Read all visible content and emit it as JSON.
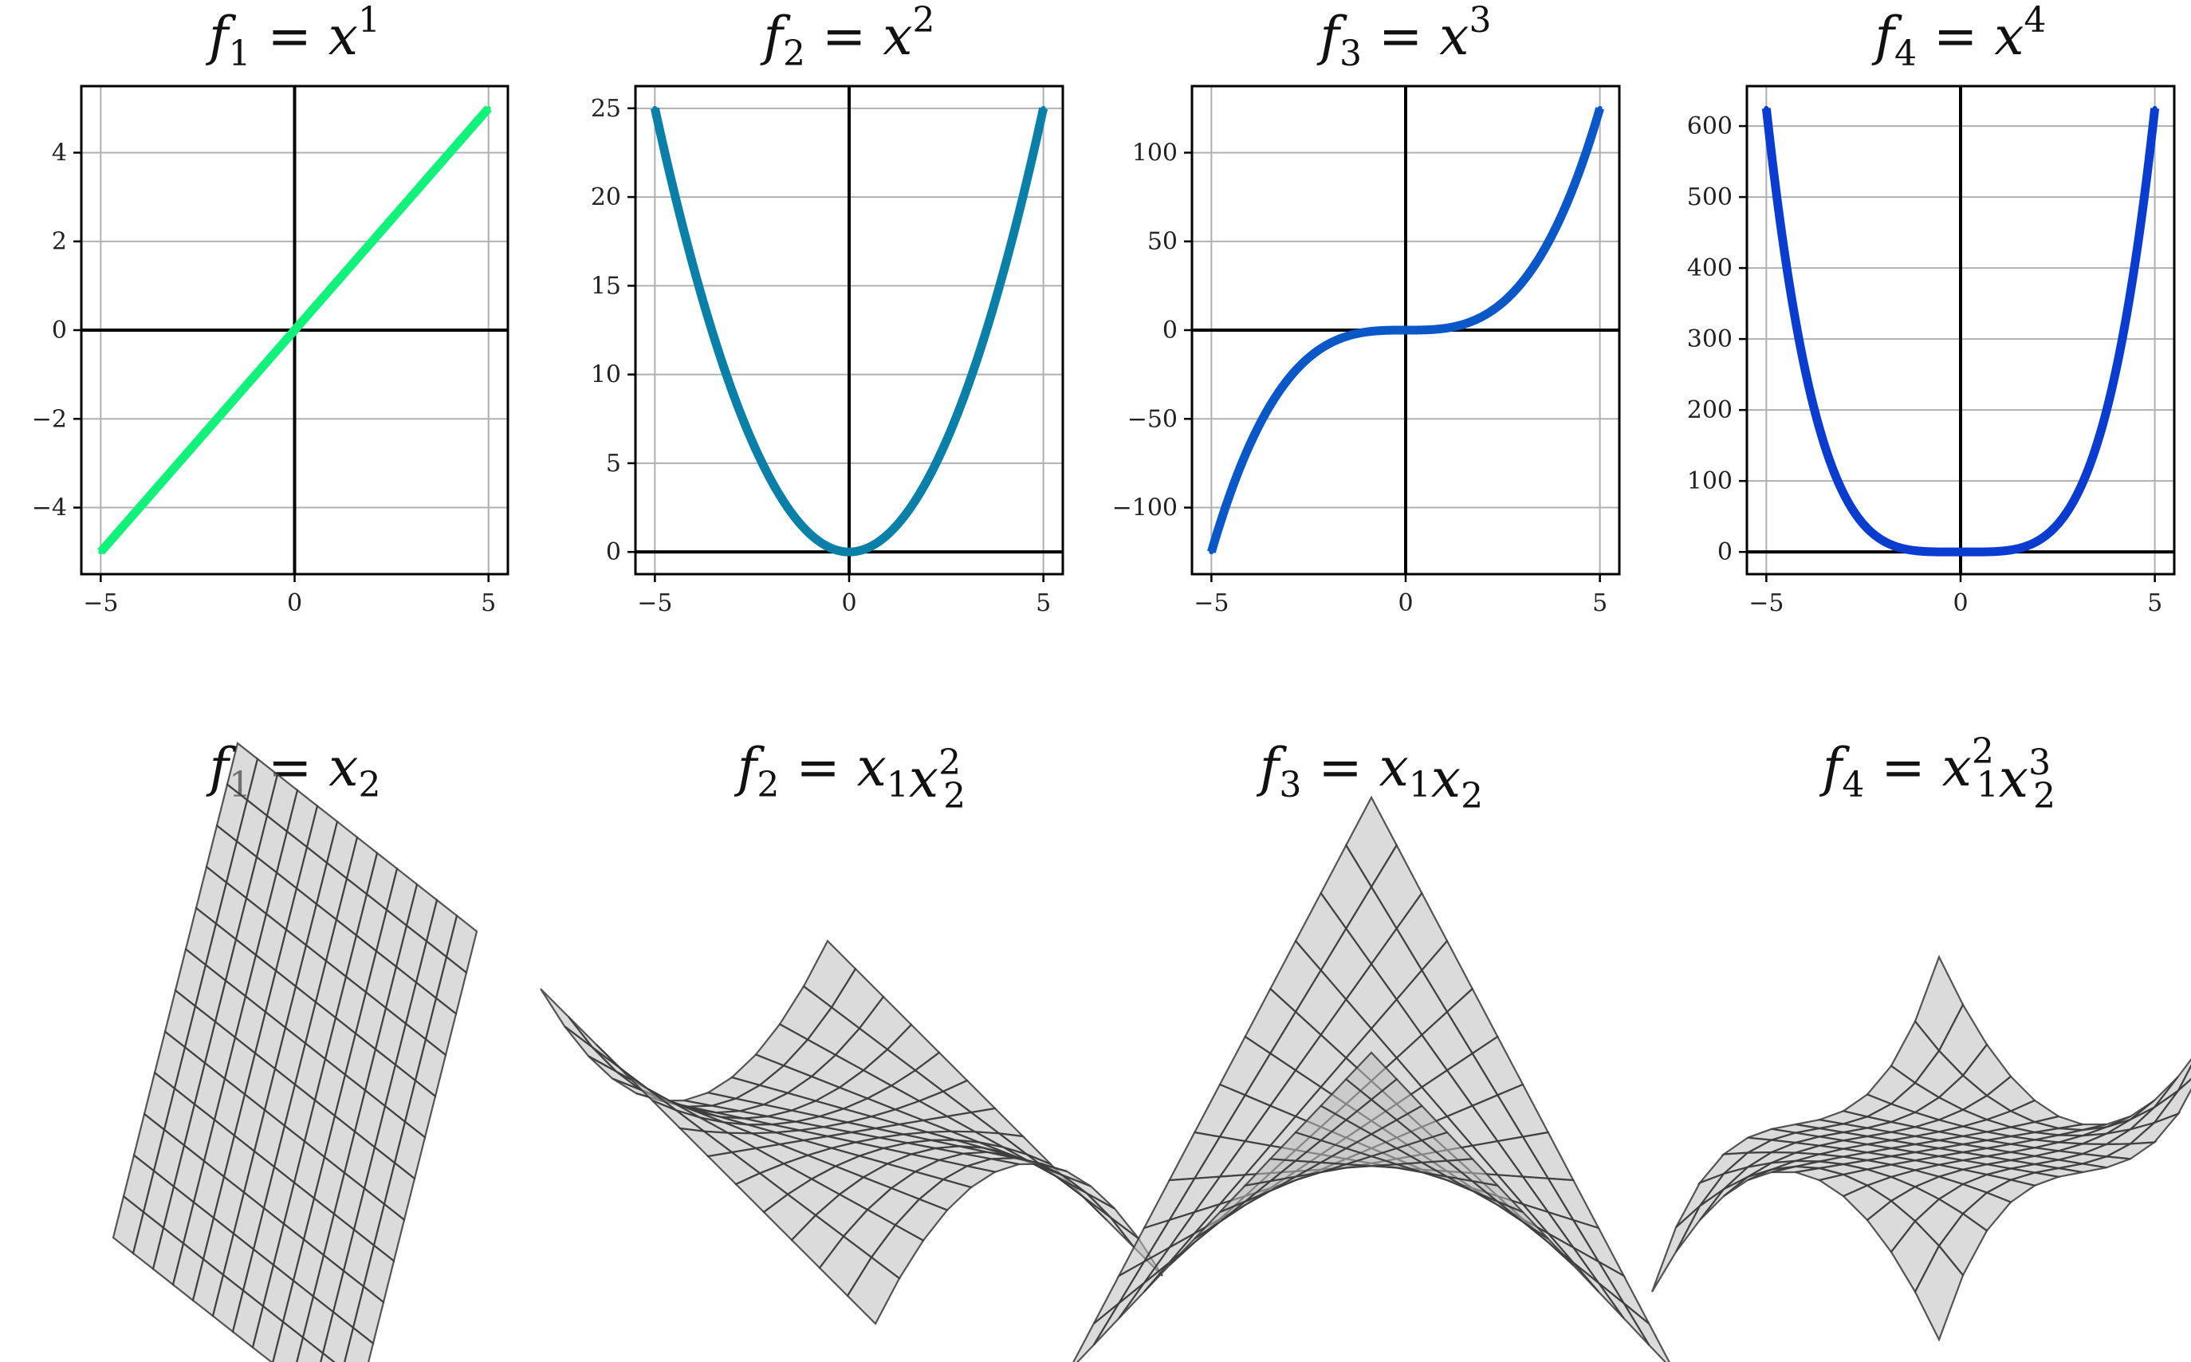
{
  "chart_data": [
    {
      "type": "line",
      "title": "f1 = x^1",
      "title_parts": {
        "f": "f",
        "sub": "1",
        "eq": "=",
        "x": "x",
        "sup": "1"
      },
      "x": [
        -5,
        -4,
        -3,
        -2,
        -1,
        0,
        1,
        2,
        3,
        4,
        5
      ],
      "y": [
        -5,
        -4,
        -3,
        -2,
        -1,
        0,
        1,
        2,
        3,
        4,
        5
      ],
      "function": "x^1",
      "xlim": [
        -5.5,
        5.5
      ],
      "ylim": [
        -5.5,
        5.5
      ],
      "xticks": [
        -5,
        0,
        5
      ],
      "xtick_labels": [
        "−5",
        "0",
        "5"
      ],
      "yticks": [
        -4,
        -2,
        0,
        2,
        4
      ],
      "ytick_labels": [
        "−4",
        "−2",
        "0",
        "2",
        "4"
      ],
      "grid": true,
      "color": "#11f27a"
    },
    {
      "type": "line",
      "title": "f2 = x^2",
      "title_parts": {
        "f": "f",
        "sub": "2",
        "eq": "=",
        "x": "x",
        "sup": "2"
      },
      "x": [
        -5,
        -4,
        -3,
        -2,
        -1,
        0,
        1,
        2,
        3,
        4,
        5
      ],
      "y": [
        25,
        16,
        9,
        4,
        1,
        0,
        1,
        4,
        9,
        16,
        25
      ],
      "function": "x^2",
      "xlim": [
        -5.5,
        5.5
      ],
      "ylim": [
        -1.25,
        26.25
      ],
      "xticks": [
        -5,
        0,
        5
      ],
      "xtick_labels": [
        "−5",
        "0",
        "5"
      ],
      "yticks": [
        0,
        5,
        10,
        15,
        20,
        25
      ],
      "ytick_labels": [
        "0",
        "5",
        "10",
        "15",
        "20",
        "25"
      ],
      "grid": true,
      "color": "#0a80a8"
    },
    {
      "type": "line",
      "title": "f3 = x^3",
      "title_parts": {
        "f": "f",
        "sub": "3",
        "eq": "=",
        "x": "x",
        "sup": "3"
      },
      "x": [
        -5,
        -4,
        -3,
        -2,
        -1,
        0,
        1,
        2,
        3,
        4,
        5
      ],
      "y": [
        -125,
        -64,
        -27,
        -8,
        -1,
        0,
        1,
        8,
        27,
        64,
        125
      ],
      "function": "x^3",
      "xlim": [
        -5.5,
        5.5
      ],
      "ylim": [
        -137.5,
        137.5
      ],
      "xticks": [
        -5,
        0,
        5
      ],
      "xtick_labels": [
        "−5",
        "0",
        "5"
      ],
      "yticks": [
        -100,
        -50,
        0,
        50,
        100
      ],
      "ytick_labels": [
        "−100",
        "−50",
        "0",
        "50",
        "100"
      ],
      "grid": true,
      "color": "#0a58c8"
    },
    {
      "type": "line",
      "title": "f4 = x^4",
      "title_parts": {
        "f": "f",
        "sub": "4",
        "eq": "=",
        "x": "x",
        "sup": "4"
      },
      "x": [
        -5,
        -4,
        -3,
        -2,
        -1,
        0,
        1,
        2,
        3,
        4,
        5
      ],
      "y": [
        625,
        256,
        81,
        16,
        1,
        0,
        1,
        16,
        81,
        256,
        625
      ],
      "function": "x^4",
      "xlim": [
        -5.5,
        5.5
      ],
      "ylim": [
        -31.25,
        656.25
      ],
      "xticks": [
        -5,
        0,
        5
      ],
      "xtick_labels": [
        "−5",
        "0",
        "5"
      ],
      "yticks": [
        0,
        100,
        200,
        300,
        400,
        500,
        600
      ],
      "ytick_labels": [
        "0",
        "100",
        "200",
        "300",
        "400",
        "500",
        "600"
      ],
      "grid": true,
      "color": "#0a3cd0"
    },
    {
      "type": "surface",
      "title": "f1 = x2",
      "title_parts": {
        "f": "f",
        "fsub": "1",
        "eq": "=",
        "terms": [
          {
            "v": "x",
            "sub": "2",
            "sup": ""
          }
        ]
      },
      "function": "x2",
      "domain": [
        -1,
        1
      ],
      "axes_visible": false,
      "color": "#bdbdbd"
    },
    {
      "type": "surface",
      "title": "f2 = x1 x2^2",
      "title_parts": {
        "f": "f",
        "fsub": "2",
        "eq": "=",
        "terms": [
          {
            "v": "x",
            "sub": "1",
            "sup": ""
          },
          {
            "v": "x",
            "sub": "2",
            "sup": "2"
          }
        ]
      },
      "function": "x1*x2^2",
      "domain": [
        -1,
        1
      ],
      "axes_visible": false,
      "color": "#bdbdbd"
    },
    {
      "type": "surface",
      "title": "f3 = x1 x2",
      "title_parts": {
        "f": "f",
        "fsub": "3",
        "eq": "=",
        "terms": [
          {
            "v": "x",
            "sub": "1",
            "sup": ""
          },
          {
            "v": "x",
            "sub": "2",
            "sup": ""
          }
        ]
      },
      "function": "x1*x2",
      "domain": [
        -1,
        1
      ],
      "axes_visible": false,
      "color": "#bdbdbd"
    },
    {
      "type": "surface",
      "title": "f4 = x1^2 x2^3",
      "title_parts": {
        "f": "f",
        "fsub": "4",
        "eq": "=",
        "terms": [
          {
            "v": "x",
            "sub": "1",
            "sup": "2"
          },
          {
            "v": "x",
            "sub": "2",
            "sup": "3"
          }
        ]
      },
      "function": "x1^2*x2^3",
      "domain": [
        -1,
        1
      ],
      "axes_visible": false,
      "color": "#bdbdbd"
    }
  ]
}
